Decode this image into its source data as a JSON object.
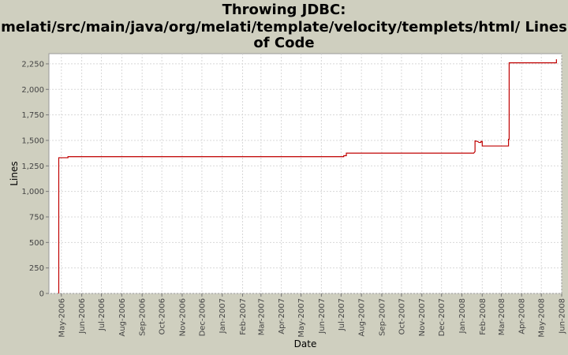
{
  "chart_data": {
    "type": "line",
    "title_lines": [
      "Throwing JDBC:",
      "melati/src/main/java/org/melati/template/velocity/templets/html/ Lines",
      "of Code"
    ],
    "xlabel": "Date",
    "ylabel": "Lines",
    "ylim": [
      0,
      2350
    ],
    "yticks": [
      0,
      250,
      500,
      750,
      1000,
      1250,
      1500,
      1750,
      2000,
      2250
    ],
    "ytick_labels": [
      "0",
      "250",
      "500",
      "750",
      "1,000",
      "1,250",
      "1,500",
      "1,750",
      "2,000",
      "2,250"
    ],
    "xlim": [
      "2006-04-12",
      "2008-06-01"
    ],
    "xticks": [
      "2006-05-01",
      "2006-06-01",
      "2006-07-01",
      "2006-08-01",
      "2006-09-01",
      "2006-10-01",
      "2006-11-01",
      "2006-12-01",
      "2007-01-01",
      "2007-02-01",
      "2007-03-01",
      "2007-04-01",
      "2007-05-01",
      "2007-06-01",
      "2007-07-01",
      "2007-08-01",
      "2007-09-01",
      "2007-10-01",
      "2007-11-01",
      "2007-12-01",
      "2008-01-01",
      "2008-02-01",
      "2008-03-01",
      "2008-04-01",
      "2008-05-01",
      "2008-06-01"
    ],
    "xtick_labels": [
      "May-2006",
      "Jun-2006",
      "Jul-2006",
      "Aug-2006",
      "Sep-2006",
      "Oct-2006",
      "Nov-2006",
      "Dec-2006",
      "Jan-2007",
      "Feb-2007",
      "Mar-2007",
      "Apr-2007",
      "May-2007",
      "Jun-2007",
      "Jul-2007",
      "Aug-2007",
      "Sep-2007",
      "Oct-2007",
      "Nov-2007",
      "Dec-2007",
      "Jan-2008",
      "Feb-2008",
      "Mar-2008",
      "Apr-2008",
      "May-2008",
      "Jun-2008"
    ],
    "grid": true,
    "series": [
      {
        "color": "#c00000",
        "points": [
          [
            "2006-04-27",
            0
          ],
          [
            "2006-04-27",
            1330
          ],
          [
            "2006-05-11",
            1330
          ],
          [
            "2006-05-11",
            1340
          ],
          [
            "2007-07-05",
            1340
          ],
          [
            "2007-07-05",
            1350
          ],
          [
            "2007-07-09",
            1350
          ],
          [
            "2007-07-09",
            1375
          ],
          [
            "2008-01-19",
            1375
          ],
          [
            "2008-01-21",
            1390
          ],
          [
            "2008-01-21",
            1495
          ],
          [
            "2008-01-25",
            1490
          ],
          [
            "2008-01-27",
            1480
          ],
          [
            "2008-01-30",
            1480
          ],
          [
            "2008-01-30",
            1490
          ],
          [
            "2008-02-01",
            1490
          ],
          [
            "2008-02-01",
            1445
          ],
          [
            "2008-03-12",
            1445
          ],
          [
            "2008-03-12",
            1510
          ],
          [
            "2008-03-13",
            1510
          ],
          [
            "2008-03-13",
            2260
          ],
          [
            "2008-05-24",
            2260
          ],
          [
            "2008-05-24",
            2295
          ]
        ]
      }
    ]
  }
}
